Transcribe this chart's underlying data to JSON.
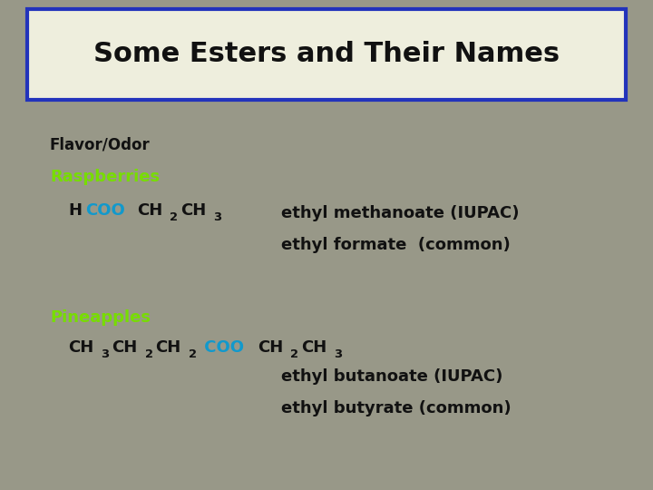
{
  "title": "Some Esters and Their Names",
  "bg_color": "#989888",
  "title_bg": "#eeeedd",
  "title_border": "#2233bb",
  "title_fontsize": 22,
  "title_color": "#111111",
  "label_flavor_odor": "Flavor/Odor",
  "label_flavor_color": "#111111",
  "label_flavor_fontsize": 12,
  "raspberry_label": "Raspberries",
  "raspberry_color": "#77dd00",
  "raspberry_fontsize": 13,
  "pineapple_label": "Pineapples",
  "pineapple_color": "#77dd00",
  "pineapple_fontsize": 13,
  "formula1_parts": [
    {
      "text": "H",
      "color": "#111111",
      "style": "normal"
    },
    {
      "text": "COO",
      "color": "#1199cc",
      "style": "normal"
    },
    {
      "text": "CH",
      "color": "#111111",
      "style": "normal"
    },
    {
      "text": "2",
      "color": "#111111",
      "style": "sub"
    },
    {
      "text": "CH",
      "color": "#111111",
      "style": "normal"
    },
    {
      "text": "3",
      "color": "#111111",
      "style": "sub"
    }
  ],
  "formula2_parts": [
    {
      "text": "CH",
      "color": "#111111",
      "style": "normal"
    },
    {
      "text": "3",
      "color": "#111111",
      "style": "sub"
    },
    {
      "text": "CH",
      "color": "#111111",
      "style": "normal"
    },
    {
      "text": "2",
      "color": "#111111",
      "style": "sub"
    },
    {
      "text": "CH",
      "color": "#111111",
      "style": "normal"
    },
    {
      "text": "2",
      "color": "#111111",
      "style": "sub"
    },
    {
      "text": " COO",
      "color": "#1199cc",
      "style": "normal"
    },
    {
      "text": "CH",
      "color": "#111111",
      "style": "normal"
    },
    {
      "text": "2",
      "color": "#111111",
      "style": "sub"
    },
    {
      "text": "CH",
      "color": "#111111",
      "style": "normal"
    },
    {
      "text": "3",
      "color": "#111111",
      "style": "sub"
    }
  ],
  "name1a": "ethyl methanoate (IUPAC)",
  "name1b": "ethyl formate  (common)",
  "name2a": "ethyl butanoate (IUPAC)",
  "name2b": "ethyl butyrate (common)",
  "name_color": "#111111",
  "name_fontsize": 13,
  "formula_fontsize": 13
}
